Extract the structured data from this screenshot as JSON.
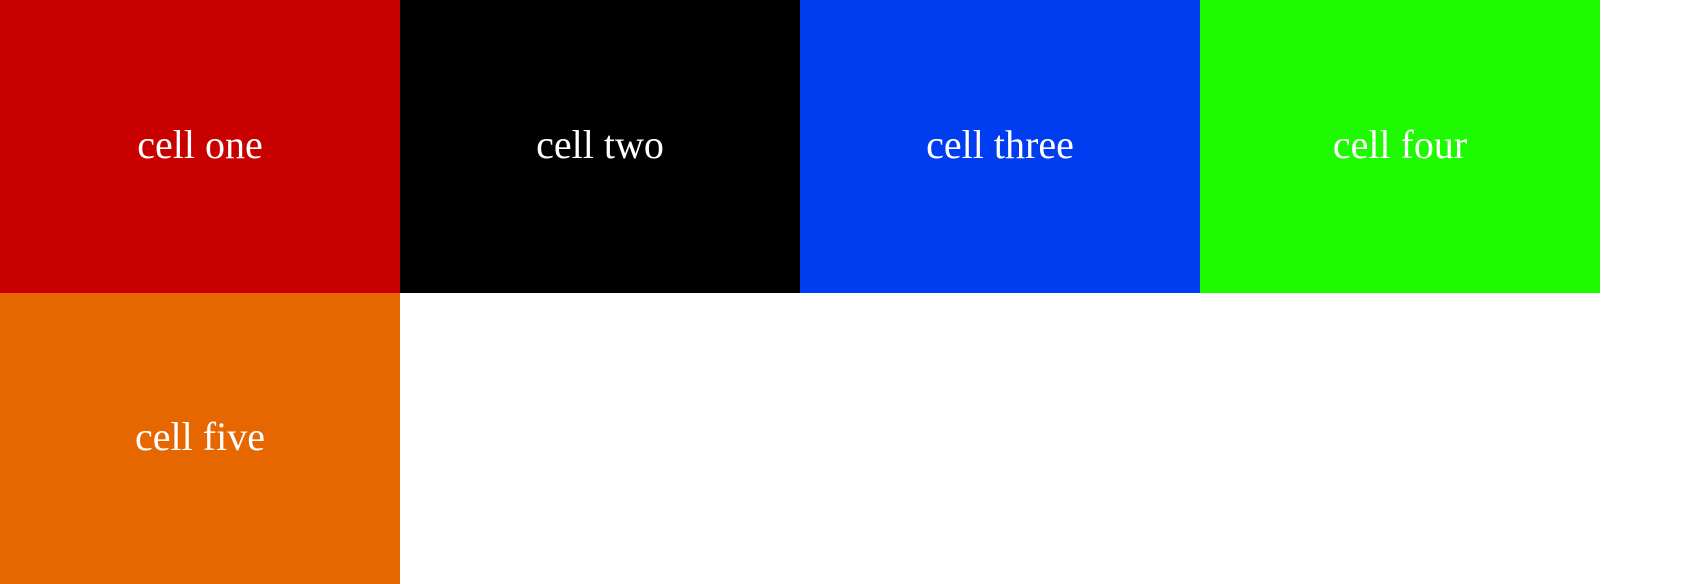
{
  "cells": [
    {
      "label": "cell one",
      "color": "#c80000"
    },
    {
      "label": "cell two",
      "color": "#000000"
    },
    {
      "label": "cell three",
      "color": "#003cf0"
    },
    {
      "label": "cell four",
      "color": "#1efa00"
    },
    {
      "label": "cell five",
      "color": "#e66600"
    }
  ]
}
